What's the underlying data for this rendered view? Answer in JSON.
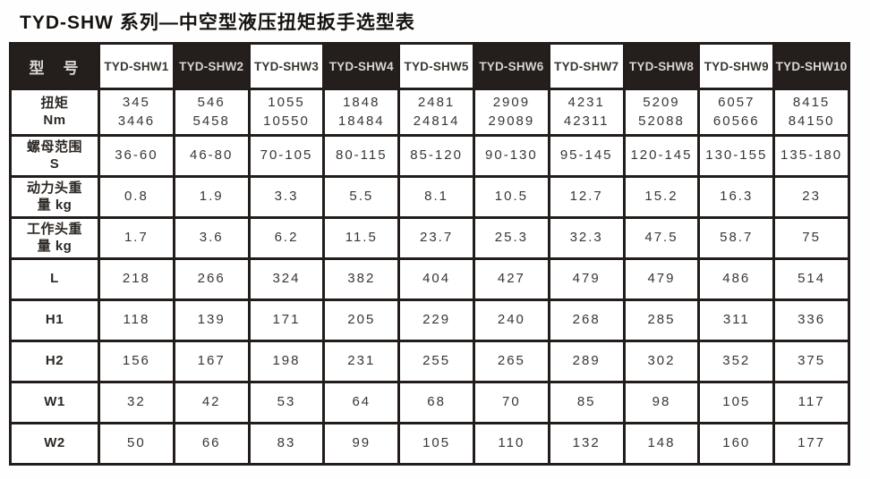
{
  "title": "TYD-SHW 系列—中空型液压扭矩扳手选型表",
  "table": {
    "corner_label": "型　号",
    "models": [
      "TYD-SHW1",
      "TYD-SHW2",
      "TYD-SHW3",
      "TYD-SHW4",
      "TYD-SHW5",
      "TYD-SHW6",
      "TYD-SHW7",
      "TYD-SHW8",
      "TYD-SHW9",
      "TYD-SHW10"
    ],
    "rows": [
      {
        "label": "扭矩\nNm",
        "values": [
          "345\n3446",
          "546\n5458",
          "1055\n10550",
          "1848\n18484",
          "2481\n24814",
          "2909\n29089",
          "4231\n42311",
          "5209\n52088",
          "6057\n60566",
          "8415\n84150"
        ]
      },
      {
        "label": "螺母范围\nS",
        "values": [
          "36-60",
          "46-80",
          "70-105",
          "80-115",
          "85-120",
          "90-130",
          "95-145",
          "120-145",
          "130-155",
          "135-180"
        ]
      },
      {
        "label": "动力头重\n量 kg",
        "values": [
          "0.8",
          "1.9",
          "3.3",
          "5.5",
          "8.1",
          "10.5",
          "12.7",
          "15.2",
          "16.3",
          "23"
        ]
      },
      {
        "label": "工作头重\n量 kg",
        "values": [
          "1.7",
          "3.6",
          "6.2",
          "11.5",
          "23.7",
          "25.3",
          "32.3",
          "47.5",
          "58.7",
          "75"
        ]
      },
      {
        "label": "L",
        "values": [
          "218",
          "266",
          "324",
          "382",
          "404",
          "427",
          "479",
          "479",
          "486",
          "514"
        ]
      },
      {
        "label": "H1",
        "values": [
          "118",
          "139",
          "171",
          "205",
          "229",
          "240",
          "268",
          "285",
          "311",
          "336"
        ]
      },
      {
        "label": "H2",
        "values": [
          "156",
          "167",
          "198",
          "231",
          "255",
          "265",
          "289",
          "302",
          "352",
          "375"
        ]
      },
      {
        "label": "W1",
        "values": [
          "32",
          "42",
          "53",
          "64",
          "68",
          "70",
          "85",
          "98",
          "105",
          "117"
        ]
      },
      {
        "label": "W2",
        "values": [
          "50",
          "66",
          "83",
          "99",
          "105",
          "110",
          "132",
          "148",
          "160",
          "177"
        ]
      }
    ]
  },
  "colors": {
    "header_dark_bg": "#241f1c",
    "header_dark_text": "#d9d7d3",
    "border": "#221d1a",
    "cell_text": "#3a3633",
    "background": "#ffffff"
  }
}
